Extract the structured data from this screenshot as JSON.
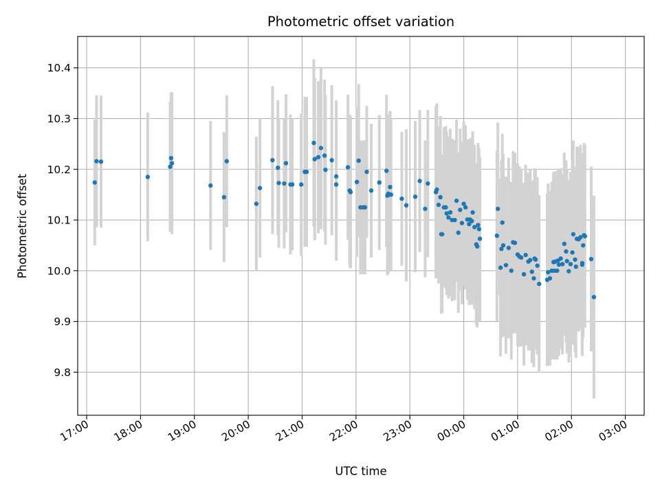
{
  "chart_data": {
    "type": "scatter",
    "title": "Photometric offset variation",
    "xlabel": "UTC time",
    "ylabel": "Photometric offset",
    "x_ticks": [
      "17:00",
      "18:00",
      "19:00",
      "20:00",
      "21:00",
      "22:00",
      "23:00",
      "00:00",
      "01:00",
      "02:00",
      "03:00"
    ],
    "y_ticks": [
      "9.8",
      "9.9",
      "10.0",
      "10.1",
      "10.2",
      "10.3",
      "10.4"
    ],
    "xlim": [
      "16:50",
      "03:21"
    ],
    "ylim": [
      9.715,
      10.462
    ],
    "grid": true,
    "marker_color": "#1f77b4",
    "errorbar_color": "#d3d3d3",
    "series": [
      {
        "points": [
          {
            "x": "17:09",
            "y": 10.174,
            "e": 0.124
          },
          {
            "x": "17:11",
            "y": 10.216,
            "e": 0.13
          },
          {
            "x": "17:16",
            "y": 10.215,
            "e": 0.13
          },
          {
            "x": "18:08",
            "y": 10.185,
            "e": 0.127
          },
          {
            "x": "18:33",
            "y": 10.205,
            "e": 0.128
          },
          {
            "x": "18:34",
            "y": 10.222,
            "e": 0.13
          },
          {
            "x": "18:35",
            "y": 10.212,
            "e": 0.14
          },
          {
            "x": "19:18",
            "y": 10.168,
            "e": 0.127
          },
          {
            "x": "19:33",
            "y": 10.145,
            "e": 0.128
          },
          {
            "x": "19:36",
            "y": 10.216,
            "e": 0.13
          },
          {
            "x": "20:09",
            "y": 10.132,
            "e": 0.132
          },
          {
            "x": "20:13",
            "y": 10.163,
            "e": 0.137
          },
          {
            "x": "20:27",
            "y": 10.218,
            "e": 0.146
          },
          {
            "x": "20:33",
            "y": 10.203,
            "e": 0.133
          },
          {
            "x": "20:34",
            "y": 10.173,
            "e": 0.128
          },
          {
            "x": "20:40",
            "y": 10.172,
            "e": 0.128
          },
          {
            "x": "20:42",
            "y": 10.212,
            "e": 0.136
          },
          {
            "x": "20:47",
            "y": 10.17,
            "e": 0.138
          },
          {
            "x": "20:49",
            "y": 10.17,
            "e": 0.13
          },
          {
            "x": "20:59",
            "y": 10.17,
            "e": 0.14
          },
          {
            "x": "21:03",
            "y": 10.195,
            "e": 0.148
          },
          {
            "x": "21:05",
            "y": 10.195,
            "e": 0.148
          },
          {
            "x": "21:13",
            "y": 10.252,
            "e": 0.165
          },
          {
            "x": "21:14",
            "y": 10.22,
            "e": 0.16
          },
          {
            "x": "21:18",
            "y": 10.224,
            "e": 0.15
          },
          {
            "x": "21:21",
            "y": 10.242,
            "e": 0.16
          },
          {
            "x": "21:25",
            "y": 10.227,
            "e": 0.15
          },
          {
            "x": "21:26",
            "y": 10.199,
            "e": 0.148
          },
          {
            "x": "21:33",
            "y": 10.218,
            "e": 0.148
          },
          {
            "x": "21:38",
            "y": 10.186,
            "e": 0.15
          },
          {
            "x": "21:38",
            "y": 10.17,
            "e": 0.15
          },
          {
            "x": "21:51",
            "y": 10.204,
            "e": 0.143
          },
          {
            "x": "21:53",
            "y": 10.158,
            "e": 0.15
          },
          {
            "x": "21:54",
            "y": 10.155,
            "e": 0.15
          },
          {
            "x": "22:01",
            "y": 10.175,
            "e": 0.148
          },
          {
            "x": "22:03",
            "y": 10.217,
            "e": 0.151
          },
          {
            "x": "22:05",
            "y": 10.125,
            "e": 0.132
          },
          {
            "x": "22:08",
            "y": 10.125,
            "e": 0.132
          },
          {
            "x": "22:10",
            "y": 10.125,
            "e": 0.132
          },
          {
            "x": "22:12",
            "y": 10.195,
            "e": 0.13
          },
          {
            "x": "22:17",
            "y": 10.158,
            "e": 0.132
          },
          {
            "x": "22:26",
            "y": 10.174,
            "e": 0.133
          },
          {
            "x": "22:34",
            "y": 10.197,
            "e": 0.15
          },
          {
            "x": "22:35",
            "y": 10.148,
            "e": 0.157
          },
          {
            "x": "22:36",
            "y": 10.152,
            "e": 0.156
          },
          {
            "x": "22:38",
            "y": 10.165,
            "e": 0.15
          },
          {
            "x": "22:39",
            "y": 10.15,
            "e": 0.15
          },
          {
            "x": "22:51",
            "y": 10.142,
            "e": 0.132
          },
          {
            "x": "22:56",
            "y": 10.129,
            "e": 0.15
          },
          {
            "x": "23:06",
            "y": 10.146,
            "e": 0.149
          },
          {
            "x": "23:11",
            "y": 10.177,
            "e": 0.14
          },
          {
            "x": "23:17",
            "y": 10.122,
            "e": 0.135
          },
          {
            "x": "23:20",
            "y": 10.172,
            "e": 0.145
          },
          {
            "x": "23:29",
            "y": 10.155,
            "e": 0.17
          },
          {
            "x": "23:30",
            "y": 10.16,
            "e": 0.17
          },
          {
            "x": "23:32",
            "y": 10.13,
            "e": 0.155
          },
          {
            "x": "23:34",
            "y": 10.145,
            "e": 0.16
          },
          {
            "x": "23:35",
            "y": 10.072,
            "e": 0.157
          },
          {
            "x": "23:36",
            "y": 10.072,
            "e": 0.155
          },
          {
            "x": "23:38",
            "y": 10.125,
            "e": 0.158
          },
          {
            "x": "23:40",
            "y": 10.125,
            "e": 0.16
          },
          {
            "x": "23:41",
            "y": 10.113,
            "e": 0.161
          },
          {
            "x": "23:43",
            "y": 10.105,
            "e": 0.16
          },
          {
            "x": "23:45",
            "y": 10.115,
            "e": 0.165
          },
          {
            "x": "23:47",
            "y": 10.1,
            "e": 0.16
          },
          {
            "x": "23:50",
            "y": 10.1,
            "e": 0.158
          },
          {
            "x": "23:52",
            "y": 10.138,
            "e": 0.16
          },
          {
            "x": "23:54",
            "y": 10.075,
            "e": 0.158
          },
          {
            "x": "23:56",
            "y": 10.12,
            "e": 0.16
          },
          {
            "x": "23:58",
            "y": 10.094,
            "e": 0.16
          },
          {
            "x": "00:00",
            "y": 10.132,
            "e": 0.162
          },
          {
            "x": "00:02",
            "y": 10.125,
            "e": 0.162
          },
          {
            "x": "00:04",
            "y": 10.101,
            "e": 0.158
          },
          {
            "x": "00:06",
            "y": 10.092,
            "e": 0.16
          },
          {
            "x": "00:07",
            "y": 10.101,
            "e": 0.16
          },
          {
            "x": "00:09",
            "y": 10.098,
            "e": 0.165
          },
          {
            "x": "00:10",
            "y": 10.115,
            "e": 0.16
          },
          {
            "x": "00:12",
            "y": 10.086,
            "e": 0.162
          },
          {
            "x": "00:14",
            "y": 10.052,
            "e": 0.16
          },
          {
            "x": "00:15",
            "y": 10.048,
            "e": 0.16
          },
          {
            "x": "00:16",
            "y": 10.09,
            "e": 0.162
          },
          {
            "x": "00:17",
            "y": 10.082,
            "e": 0.16
          },
          {
            "x": "00:18",
            "y": 10.063,
            "e": 0.162
          },
          {
            "x": "00:37",
            "y": 10.069,
            "e": 0.168
          },
          {
            "x": "00:38",
            "y": 10.122,
            "e": 0.17
          },
          {
            "x": "00:41",
            "y": 10.006,
            "e": 0.175
          },
          {
            "x": "00:42",
            "y": 10.043,
            "e": 0.175
          },
          {
            "x": "00:43",
            "y": 10.095,
            "e": 0.175
          },
          {
            "x": "00:44",
            "y": 10.05,
            "e": 0.18
          },
          {
            "x": "00:47",
            "y": 10.011,
            "e": 0.175
          },
          {
            "x": "00:50",
            "y": 10.045,
            "e": 0.178
          },
          {
            "x": "00:53",
            "y": 10.0,
            "e": 0.175
          },
          {
            "x": "00:55",
            "y": 10.056,
            "e": 0.18
          },
          {
            "x": "00:57",
            "y": 10.055,
            "e": 0.178
          },
          {
            "x": "01:00",
            "y": 10.032,
            "e": 0.18
          },
          {
            "x": "01:02",
            "y": 10.028,
            "e": 0.178
          },
          {
            "x": "01:04",
            "y": 10.026,
            "e": 0.175
          },
          {
            "x": "01:07",
            "y": 9.993,
            "e": 0.18
          },
          {
            "x": "01:09",
            "y": 10.031,
            "e": 0.178
          },
          {
            "x": "01:12",
            "y": 10.018,
            "e": 0.175
          },
          {
            "x": "01:14",
            "y": 10.021,
            "e": 0.178
          },
          {
            "x": "01:16",
            "y": 9.998,
            "e": 0.18
          },
          {
            "x": "01:18",
            "y": 9.985,
            "e": 0.175
          },
          {
            "x": "01:19",
            "y": 10.024,
            "e": 0.178
          },
          {
            "x": "01:20",
            "y": 10.022,
            "e": 0.178
          },
          {
            "x": "01:22",
            "y": 10.01,
            "e": 0.175
          },
          {
            "x": "01:24",
            "y": 9.974,
            "e": 0.175
          },
          {
            "x": "01:33",
            "y": 9.982,
            "e": 0.17
          },
          {
            "x": "01:34",
            "y": 9.997,
            "e": 0.175
          },
          {
            "x": "01:36",
            "y": 9.985,
            "e": 0.172
          },
          {
            "x": "01:38",
            "y": 10.0,
            "e": 0.175
          },
          {
            "x": "01:40",
            "y": 10.017,
            "e": 0.178
          },
          {
            "x": "01:41",
            "y": 10.0,
            "e": 0.175
          },
          {
            "x": "01:42",
            "y": 10.018,
            "e": 0.178
          },
          {
            "x": "01:44",
            "y": 10.0,
            "e": 0.175
          },
          {
            "x": "01:45",
            "y": 10.02,
            "e": 0.18
          },
          {
            "x": "01:46",
            "y": 10.012,
            "e": 0.18
          },
          {
            "x": "01:48",
            "y": 10.024,
            "e": 0.178
          },
          {
            "x": "01:50",
            "y": 10.013,
            "e": 0.178
          },
          {
            "x": "01:52",
            "y": 10.053,
            "e": 0.18
          },
          {
            "x": "01:54",
            "y": 10.038,
            "e": 0.18
          },
          {
            "x": "01:55",
            "y": 10.019,
            "e": 0.182
          },
          {
            "x": "01:57",
            "y": 9.999,
            "e": 0.18
          },
          {
            "x": "01:59",
            "y": 10.013,
            "e": 0.182
          },
          {
            "x": "02:01",
            "y": 10.036,
            "e": 0.182
          },
          {
            "x": "02:02",
            "y": 10.072,
            "e": 0.185
          },
          {
            "x": "02:04",
            "y": 10.022,
            "e": 0.182
          },
          {
            "x": "02:05",
            "y": 10.008,
            "e": 0.18
          },
          {
            "x": "02:06",
            "y": 10.063,
            "e": 0.182
          },
          {
            "x": "02:08",
            "y": 10.062,
            "e": 0.182
          },
          {
            "x": "02:10",
            "y": 10.066,
            "e": 0.182
          },
          {
            "x": "02:12",
            "y": 10.012,
            "e": 0.18
          },
          {
            "x": "02:12",
            "y": 10.015,
            "e": 0.18
          },
          {
            "x": "02:13",
            "y": 10.05,
            "e": 0.182
          },
          {
            "x": "02:14",
            "y": 10.07,
            "e": 0.182
          },
          {
            "x": "02:15",
            "y": 10.068,
            "e": 0.18
          },
          {
            "x": "02:22",
            "y": 10.023,
            "e": 0.182
          },
          {
            "x": "02:25",
            "y": 9.948,
            "e": 0.2
          }
        ]
      }
    ]
  }
}
